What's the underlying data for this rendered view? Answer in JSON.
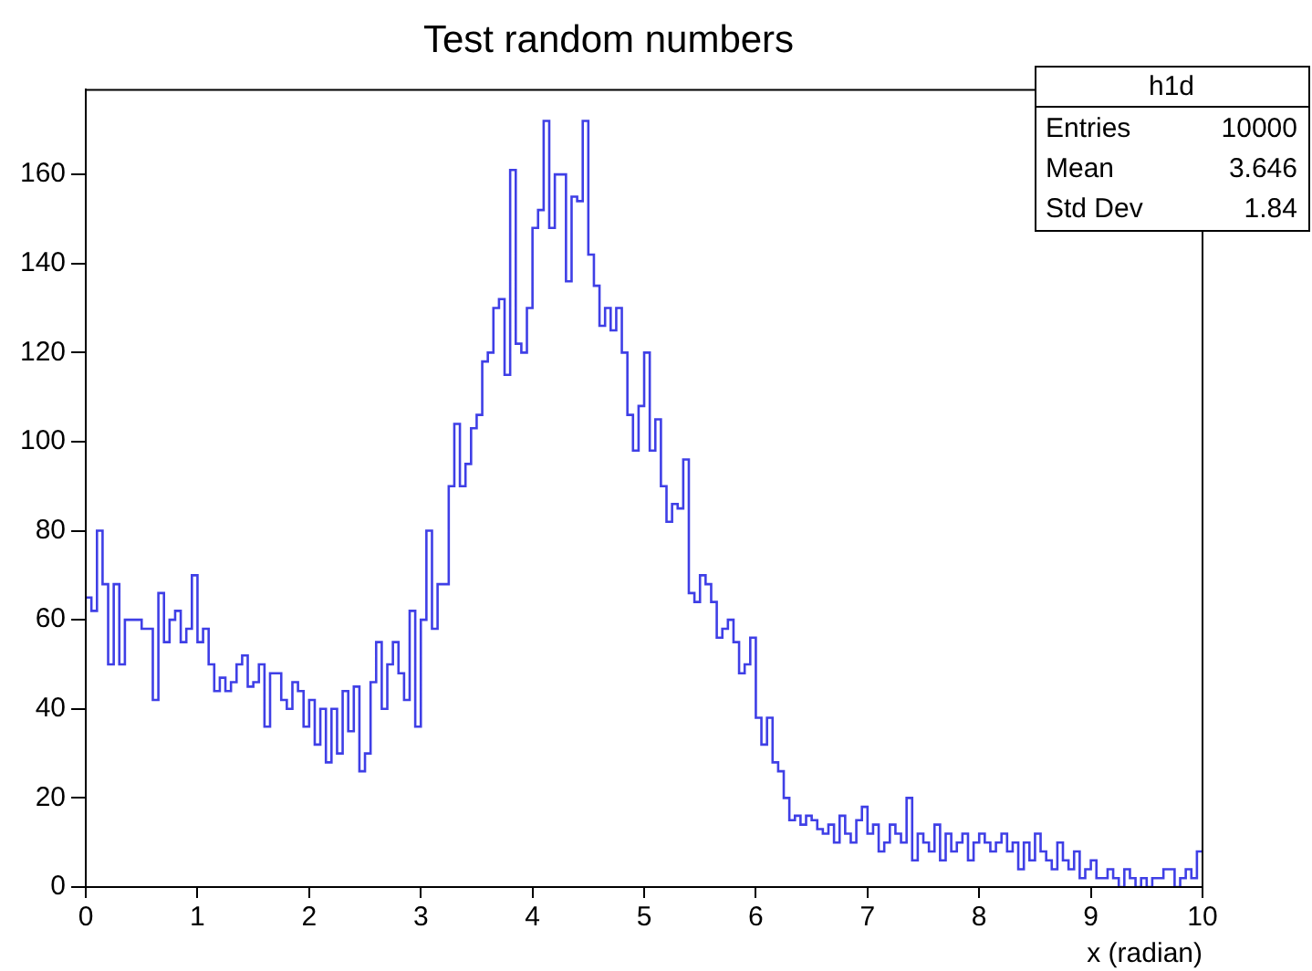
{
  "chart_data": {
    "type": "histogram",
    "title": "Test random numbers",
    "xlabel": "x (radian)",
    "bins": [
      0,
      0.05,
      0.1,
      0.15,
      0.2,
      0.25,
      0.3,
      0.35,
      0.4,
      0.45,
      0.5,
      0.55,
      0.6,
      0.65,
      0.7,
      0.75,
      0.8,
      0.85,
      0.9,
      0.95,
      1,
      1.05,
      1.1,
      1.15,
      1.2,
      1.25,
      1.3,
      1.35,
      1.4,
      1.45,
      1.5,
      1.55,
      1.6,
      1.65,
      1.7,
      1.75,
      1.8,
      1.85,
      1.9,
      1.95,
      2,
      2.05,
      2.1,
      2.15,
      2.2,
      2.25,
      2.3,
      2.35,
      2.4,
      2.45,
      2.5,
      2.55,
      2.6,
      2.65,
      2.7,
      2.75,
      2.8,
      2.85,
      2.9,
      2.95,
      3,
      3.05,
      3.1,
      3.15,
      3.2,
      3.25,
      3.3,
      3.35,
      3.4,
      3.45,
      3.5,
      3.55,
      3.6,
      3.65,
      3.7,
      3.75,
      3.8,
      3.85,
      3.9,
      3.95,
      4,
      4.05,
      4.1,
      4.15,
      4.2,
      4.25,
      4.3,
      4.35,
      4.4,
      4.45,
      4.5,
      4.55,
      4.6,
      4.65,
      4.7,
      4.75,
      4.8,
      4.85,
      4.9,
      4.95,
      5,
      5.05,
      5.1,
      5.15,
      5.2,
      5.25,
      5.3,
      5.35,
      5.4,
      5.45,
      5.5,
      5.55,
      5.6,
      5.65,
      5.7,
      5.75,
      5.8,
      5.85,
      5.9,
      5.95,
      6,
      6.05,
      6.1,
      6.15,
      6.2,
      6.25,
      6.3,
      6.35,
      6.4,
      6.45,
      6.5,
      6.55,
      6.6,
      6.65,
      6.7,
      6.75,
      6.8,
      6.85,
      6.9,
      6.95,
      7,
      7.05,
      7.1,
      7.15,
      7.2,
      7.25,
      7.3,
      7.35,
      7.4,
      7.45,
      7.5,
      7.55,
      7.6,
      7.65,
      7.7,
      7.75,
      7.8,
      7.85,
      7.9,
      7.95,
      8,
      8.05,
      8.1,
      8.15,
      8.2,
      8.25,
      8.3,
      8.35,
      8.4,
      8.45,
      8.5,
      8.55,
      8.6,
      8.65,
      8.7,
      8.75,
      8.8,
      8.85,
      8.9,
      8.95,
      9,
      9.05,
      9.1,
      9.15,
      9.2,
      9.25,
      9.3,
      9.35,
      9.4,
      9.45,
      9.5,
      9.55,
      9.6,
      9.65,
      9.7,
      9.75,
      9.8,
      9.85,
      9.9,
      9.95,
      10
    ],
    "values": [
      65,
      62,
      80,
      68,
      50,
      68,
      50,
      60,
      60,
      60,
      58,
      58,
      42,
      66,
      55,
      60,
      62,
      55,
      58,
      70,
      55,
      58,
      50,
      44,
      47,
      44,
      46,
      50,
      52,
      45,
      46,
      50,
      36,
      48,
      48,
      42,
      40,
      46,
      44,
      36,
      42,
      32,
      40,
      28,
      40,
      30,
      44,
      35,
      45,
      26,
      30,
      46,
      55,
      40,
      50,
      55,
      48,
      42,
      62,
      36,
      60,
      80,
      58,
      68,
      68,
      90,
      104,
      90,
      95,
      103,
      106,
      118,
      120,
      130,
      132,
      115,
      161,
      122,
      120,
      130,
      148,
      152,
      172,
      148,
      160,
      160,
      136,
      155,
      154,
      172,
      142,
      135,
      126,
      130,
      125,
      130,
      120,
      106,
      98,
      108,
      120,
      98,
      105,
      90,
      82,
      86,
      85,
      96,
      66,
      64,
      70,
      68,
      64,
      56,
      58,
      60,
      55,
      48,
      50,
      56,
      38,
      32,
      38,
      28,
      26,
      20,
      15,
      16,
      14,
      16,
      15,
      13,
      12,
      14,
      10,
      16,
      12,
      10,
      15,
      18,
      12,
      14,
      8,
      10,
      14,
      12,
      10,
      20,
      6,
      12,
      10,
      8,
      14,
      6,
      12,
      8,
      10,
      12,
      6,
      10,
      12,
      10,
      8,
      10,
      12,
      8,
      10,
      4,
      10,
      6,
      12,
      8,
      6,
      4,
      10,
      6,
      4,
      8,
      2,
      4,
      6,
      2,
      2,
      4,
      2,
      0,
      4,
      2,
      0,
      2,
      0,
      2,
      2,
      4,
      4,
      0,
      2,
      4,
      2,
      8
    ],
    "color": "#3f3fe6",
    "xlim": [
      0,
      10
    ],
    "ylim": [
      0,
      179
    ],
    "xticks": [
      0,
      1,
      2,
      3,
      4,
      5,
      6,
      7,
      8,
      9,
      10
    ],
    "yticks": [
      0,
      20,
      40,
      60,
      80,
      100,
      120,
      140,
      160
    ],
    "annotations": [
      "h1d",
      "Entries",
      "10000",
      "Mean",
      "3.646",
      "Std Dev",
      "1.84"
    ],
    "grid": false,
    "legend": false
  }
}
